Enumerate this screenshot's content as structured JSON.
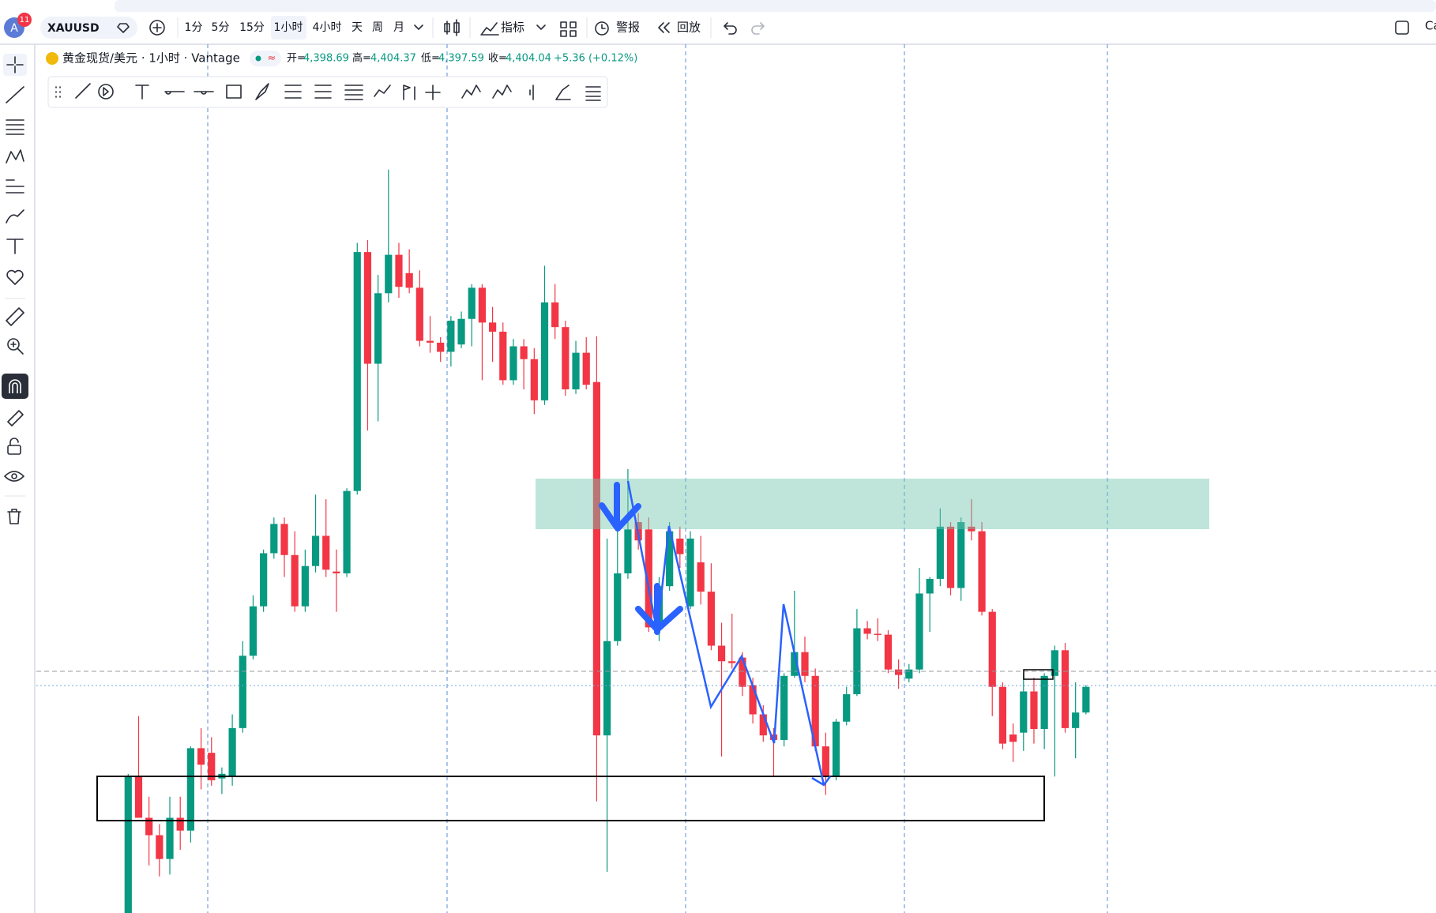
{
  "toolbar": {
    "avatar": "A",
    "badge": "11",
    "symbol": "XAUUSD",
    "intervals": [
      "1分",
      "5分",
      "15分",
      "1小时",
      "4小时",
      "天",
      "周",
      "月"
    ],
    "indicators": "指标",
    "alerts": "警报",
    "replay": "回放",
    "cut_text": "Ca"
  },
  "legend": {
    "title": "黄金现货/美元 · 1小时 · Vantage",
    "open_label": "开=",
    "open": "4,398.69",
    "high_label": "高=",
    "high": "4,404.37",
    "low_label": "低=",
    "low": "4,397.59",
    "close_label": "收=",
    "close": "4,404.04",
    "change": "+5.36 (+0.12%)"
  },
  "chart_data": {
    "type": "candlestick",
    "up_color": "#089981",
    "down_color": "#f23645",
    "ylim": [
      4354.6,
      4544.4
    ],
    "ohlc": [
      [
        4354.6,
        4385,
        4354,
        4384.4
      ],
      [
        4384.4,
        4397.6,
        4375.4,
        4375.4
      ],
      [
        4375.4,
        4380,
        4365,
        4371.6
      ],
      [
        4371.6,
        4374,
        4362.6,
        4366.4
      ],
      [
        4366.4,
        4380,
        4363,
        4375.4
      ],
      [
        4375.4,
        4380,
        4368.4,
        4372.6
      ],
      [
        4372.6,
        4391,
        4370,
        4390.6
      ],
      [
        4390.6,
        4395,
        4381.6,
        4387
      ],
      [
        4389.6,
        4393,
        4382.4,
        4383.6
      ],
      [
        4384,
        4386.4,
        4380.6,
        4385
      ],
      [
        4384.6,
        4398,
        4382.4,
        4395
      ],
      [
        4395,
        4414,
        4394,
        4410.8
      ],
      [
        4410.8,
        4424,
        4410,
        4421.6
      ],
      [
        4421.6,
        4434,
        4420.4,
        4433.2
      ],
      [
        4433.2,
        4441,
        4432,
        4439.6
      ],
      [
        4439.6,
        4441,
        4428,
        4432.8
      ],
      [
        4432.8,
        4438,
        4420.4,
        4421.6
      ],
      [
        4421.6,
        4434,
        4420.4,
        4430.4
      ],
      [
        4430.4,
        4446,
        4429,
        4437
      ],
      [
        4437,
        4445,
        4428,
        4429.6
      ],
      [
        4429.2,
        4434,
        4420.4,
        4428.8
      ],
      [
        4428.8,
        4447.4,
        4428,
        4446.8
      ],
      [
        4446.8,
        4501,
        4446,
        4499
      ],
      [
        4499,
        4501.6,
        4460,
        4474.6
      ],
      [
        4474.6,
        4494,
        4462,
        4490
      ],
      [
        4490,
        4517,
        4488,
        4498.4
      ],
      [
        4498.4,
        4501,
        4489,
        4491.4
      ],
      [
        4494.4,
        4499.6,
        4490,
        4491.2
      ],
      [
        4491.2,
        4495,
        4478.4,
        4479.6
      ],
      [
        4479.6,
        4485,
        4477,
        4479.2
      ],
      [
        4479.2,
        4480.4,
        4475,
        4477.2
      ],
      [
        4477.2,
        4485,
        4474,
        4484
      ],
      [
        4478.8,
        4486,
        4478,
        4484.4
      ],
      [
        4484.4,
        4492,
        4478.4,
        4491.2
      ],
      [
        4491.2,
        4492,
        4471,
        4483.6
      ],
      [
        4483.6,
        4487,
        4475,
        4481.6
      ],
      [
        4481.6,
        4483.6,
        4470,
        4471
      ],
      [
        4471,
        4480,
        4470,
        4478.4
      ],
      [
        4478.4,
        4480,
        4469,
        4475.6
      ],
      [
        4475.6,
        4478,
        4463.6,
        4466.6
      ],
      [
        4466.6,
        4496,
        4465.6,
        4488
      ],
      [
        4488,
        4492,
        4480,
        4482.6
      ],
      [
        4482.6,
        4484,
        4467.6,
        4469
      ],
      [
        4469,
        4479.6,
        4468,
        4477
      ],
      [
        4477,
        4480.4,
        4469,
        4470
      ],
      [
        4470.6,
        4480.6,
        4379,
        4393.4
      ],
      [
        4393.4,
        4436.4,
        4363.6,
        4414
      ],
      [
        4414,
        4442,
        4413,
        4428.8
      ],
      [
        4428.8,
        4451.6,
        4427.6,
        4438.4
      ],
      [
        4440,
        4442,
        4434,
        4436
      ],
      [
        4438.4,
        4441,
        4416,
        4417
      ],
      [
        4417,
        4428,
        4414,
        4426
      ],
      [
        4426,
        4440,
        4425,
        4438
      ],
      [
        4436.4,
        4439,
        4430,
        4433
      ],
      [
        4421.6,
        4438,
        4421,
        4436.4
      ],
      [
        4431.2,
        4437,
        4422,
        4424.8
      ],
      [
        4424.8,
        4431,
        4412,
        4413
      ],
      [
        4413,
        4418,
        4388.8,
        4409.6
      ],
      [
        4409.6,
        4420,
        4408,
        4409.2
      ],
      [
        4410.4,
        4411.6,
        4402,
        4404
      ],
      [
        4404.4,
        4406,
        4396,
        4398
      ],
      [
        4398,
        4400,
        4392,
        4393.4
      ],
      [
        4393.6,
        4395,
        4384.6,
        4392.4
      ],
      [
        4392.4,
        4407,
        4391,
        4406.4
      ],
      [
        4406.4,
        4425,
        4406,
        4411.6
      ],
      [
        4411.6,
        4415,
        4405,
        4406.4
      ],
      [
        4406.4,
        4408,
        4390,
        4391
      ],
      [
        4391,
        4394,
        4380.4,
        4384.4
      ],
      [
        4384.4,
        4397,
        4383.6,
        4396.4
      ],
      [
        4396.4,
        4404,
        4395.6,
        4402.4
      ],
      [
        4402.4,
        4421,
        4402,
        4416.8
      ],
      [
        4416.8,
        4418.4,
        4414.4,
        4415.6
      ],
      [
        4415.6,
        4419,
        4414,
        4415.4
      ],
      [
        4415.4,
        4416.4,
        4407,
        4407.8
      ],
      [
        4407.8,
        4410,
        4403.6,
        4406.6
      ],
      [
        4405.8,
        4409,
        4405,
        4407.8
      ],
      [
        4407.8,
        4430,
        4407,
        4424.4
      ],
      [
        4424.4,
        4428,
        4416,
        4427.6
      ],
      [
        4427.6,
        4443,
        4426,
        4439
      ],
      [
        4439,
        4440,
        4424,
        4425.6
      ],
      [
        4425.6,
        4441,
        4422.8,
        4440
      ],
      [
        4439,
        4445,
        4436,
        4438
      ],
      [
        4438,
        4440,
        4419.6,
        4420.4
      ],
      [
        4420.4,
        4421,
        4397.6,
        4404
      ],
      [
        4404,
        4405,
        4390.4,
        4391.6
      ],
      [
        4393.6,
        4396,
        4387.6,
        4392
      ],
      [
        4394,
        4407,
        4390,
        4403
      ],
      [
        4403,
        4406,
        4391.6,
        4394.8
      ],
      [
        4394.8,
        4407,
        4390.4,
        4406.4
      ],
      [
        4406.4,
        4413,
        4384.4,
        4412
      ],
      [
        4412,
        4413.6,
        4394,
        4395
      ],
      [
        4395,
        4405,
        4388.4,
        4398.4
      ],
      [
        4398.4,
        4404.4,
        4398,
        4404
      ]
    ]
  }
}
